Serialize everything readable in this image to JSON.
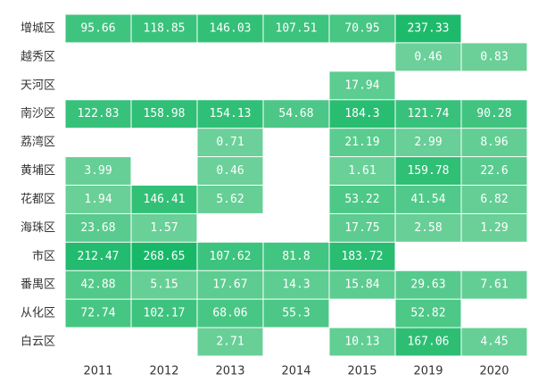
{
  "chart_data": {
    "type": "heatmap",
    "x": [
      "2011",
      "2012",
      "2013",
      "2014",
      "2015",
      "2019",
      "2020"
    ],
    "y": [
      "增城区",
      "越秀区",
      "天河区",
      "南沙区",
      "荔湾区",
      "黄埔区",
      "花都区",
      "海珠区",
      "市区",
      "番禺区",
      "从化区",
      "白云区"
    ],
    "values": [
      [
        95.66,
        118.85,
        146.03,
        107.51,
        70.95,
        237.33,
        null
      ],
      [
        null,
        null,
        null,
        null,
        null,
        0.46,
        0.83
      ],
      [
        null,
        null,
        null,
        null,
        17.94,
        null,
        null
      ],
      [
        122.83,
        158.98,
        154.13,
        54.68,
        184.3,
        121.74,
        90.28
      ],
      [
        null,
        null,
        0.71,
        null,
        21.19,
        2.99,
        8.96
      ],
      [
        3.99,
        null,
        0.46,
        null,
        1.61,
        159.78,
        22.6
      ],
      [
        1.94,
        146.41,
        5.62,
        null,
        53.22,
        41.54,
        6.82
      ],
      [
        23.68,
        1.57,
        null,
        null,
        17.75,
        2.58,
        1.29
      ],
      [
        212.47,
        268.65,
        107.62,
        81.8,
        183.72,
        null,
        null
      ],
      [
        42.88,
        5.15,
        17.67,
        14.3,
        15.84,
        29.63,
        7.61
      ],
      [
        72.74,
        102.17,
        68.06,
        55.3,
        null,
        52.82,
        null
      ],
      [
        null,
        null,
        2.71,
        null,
        10.13,
        167.06,
        4.45
      ]
    ],
    "labels": [
      [
        "95.66",
        "118.85",
        "146.03",
        "107.51",
        "70.95",
        "237.33",
        null
      ],
      [
        null,
        null,
        null,
        null,
        null,
        "0.46",
        "0.83"
      ],
      [
        null,
        null,
        null,
        null,
        "17.94",
        null,
        null
      ],
      [
        "122.83",
        "158.98",
        "154.13",
        "54.68",
        "184.3",
        "121.74",
        "90.28"
      ],
      [
        null,
        null,
        "0.71",
        null,
        "21.19",
        "2.99",
        "8.96"
      ],
      [
        "3.99",
        null,
        "0.46",
        null,
        "1.61",
        "159.78",
        "22.6"
      ],
      [
        "1.94",
        "146.41",
        "5.62",
        null,
        "53.22",
        "41.54",
        "6.82"
      ],
      [
        "23.68",
        "1.57",
        null,
        null,
        "17.75",
        "2.58",
        "1.29"
      ],
      [
        "212.47",
        "268.65",
        "107.62",
        "81.8",
        "183.72",
        null,
        null
      ],
      [
        "42.88",
        "5.15",
        "17.67",
        "14.3",
        "15.84",
        "29.63",
        "7.61"
      ],
      [
        "72.74",
        "102.17",
        "68.06",
        "55.3",
        null,
        "52.82",
        null
      ],
      [
        null,
        null,
        "2.71",
        null,
        "10.13",
        "167.06",
        "4.45"
      ]
    ],
    "color_min": "#6dd19a",
    "color_max": "#18b868",
    "value_range": [
      0,
      268.65
    ],
    "grid": false,
    "legend": "none"
  }
}
